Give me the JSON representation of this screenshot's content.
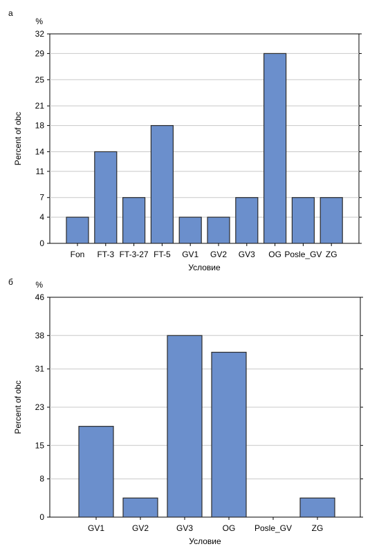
{
  "panels": [
    {
      "letter": "а",
      "chart_data": {
        "type": "bar",
        "title": "",
        "xlabel": "Условие",
        "ylabel": "Percent of obc",
        "yunit": "%",
        "categories": [
          "Fon",
          "FT-3",
          "FT-3-27",
          "FT-5",
          "GV1",
          "GV2",
          "GV3",
          "OG",
          "Posle_GV",
          "ZG"
        ],
        "values": [
          4,
          14,
          7,
          18,
          4,
          4,
          7,
          29,
          7,
          7
        ],
        "yticks": [
          0,
          4,
          7,
          11,
          14,
          18,
          21,
          25,
          29,
          32
        ],
        "ylim": [
          0,
          32
        ],
        "grid": true,
        "color": "#6b8fcc"
      }
    },
    {
      "letter": "б",
      "chart_data": {
        "type": "bar",
        "title": "",
        "xlabel": "Условие",
        "ylabel": "Percent of obc",
        "yunit": "%",
        "categories": [
          "GV1",
          "GV2",
          "GV3",
          "OG",
          "Posle_GV",
          "ZG"
        ],
        "values": [
          19,
          4,
          38,
          34.5,
          0,
          4
        ],
        "yticks": [
          0,
          8,
          15,
          23,
          31,
          38,
          46
        ],
        "ylim": [
          0,
          46
        ],
        "grid": true,
        "color": "#6b8fcc"
      }
    }
  ]
}
